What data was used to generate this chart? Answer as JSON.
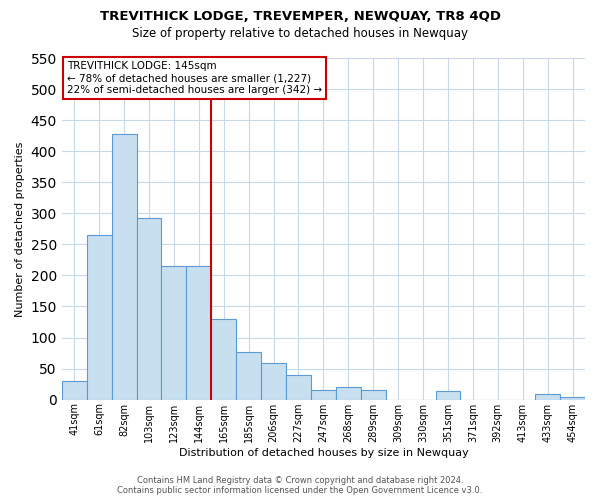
{
  "title": "TREVITHICK LODGE, TREVEMPER, NEWQUAY, TR8 4QD",
  "subtitle": "Size of property relative to detached houses in Newquay",
  "xlabel": "Distribution of detached houses by size in Newquay",
  "ylabel": "Number of detached properties",
  "bar_labels": [
    "41sqm",
    "61sqm",
    "82sqm",
    "103sqm",
    "123sqm",
    "144sqm",
    "165sqm",
    "185sqm",
    "206sqm",
    "227sqm",
    "247sqm",
    "268sqm",
    "289sqm",
    "309sqm",
    "330sqm",
    "351sqm",
    "371sqm",
    "392sqm",
    "413sqm",
    "433sqm",
    "454sqm"
  ],
  "bar_values": [
    30,
    265,
    428,
    293,
    215,
    215,
    130,
    76,
    59,
    40,
    15,
    20,
    15,
    0,
    0,
    14,
    0,
    0,
    0,
    9,
    5
  ],
  "bar_color": "#c8dff0",
  "bar_edge_color": "#5b9bd5",
  "highlight_line_color": "#cc0000",
  "highlight_bar_index": 5,
  "annotation_title": "TREVITHICK LODGE: 145sqm",
  "annotation_line1": "← 78% of detached houses are smaller (1,227)",
  "annotation_line2": "22% of semi-detached houses are larger (342) →",
  "annotation_box_color": "#ffffff",
  "annotation_box_edge": "#cc0000",
  "ylim": [
    0,
    550
  ],
  "yticks": [
    0,
    50,
    100,
    150,
    200,
    250,
    300,
    350,
    400,
    450,
    500,
    550
  ],
  "background_color": "#ffffff",
  "grid_color": "#c8d8e8",
  "footer_line1": "Contains HM Land Registry data © Crown copyright and database right 2024.",
  "footer_line2": "Contains public sector information licensed under the Open Government Licence v3.0."
}
